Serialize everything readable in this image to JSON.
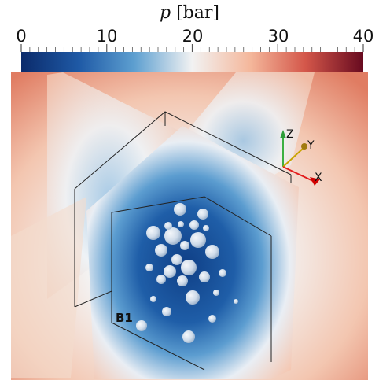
{
  "colorbar": {
    "title_var": "p",
    "title_unit": "[bar]",
    "tick_labels": [
      "0",
      "10",
      "20",
      "30",
      "40"
    ],
    "colors": [
      "#0b2b6b",
      "#1f5aa6",
      "#5d9fd0",
      "#f2f2f2",
      "#f4b79b",
      "#d4574a",
      "#670a1f"
    ]
  },
  "axes": {
    "z": "Z",
    "y": "Y",
    "x": "X"
  },
  "annotation": {
    "block_label": "B1"
  }
}
